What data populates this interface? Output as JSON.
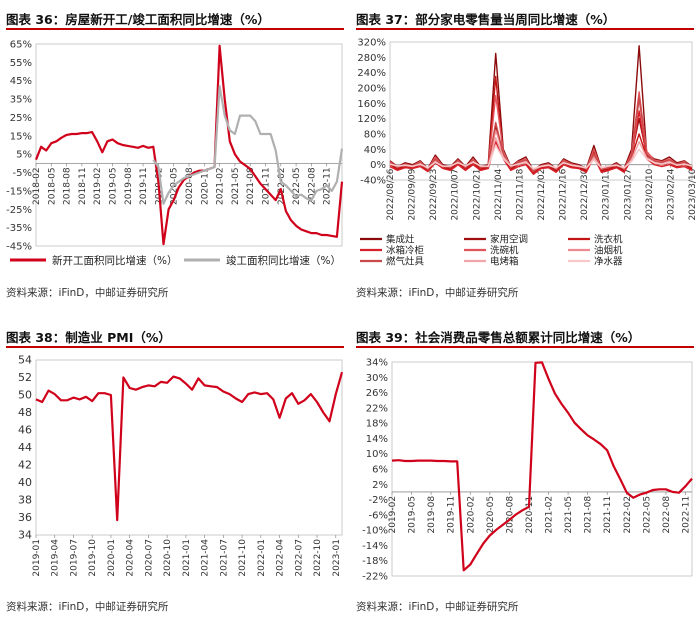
{
  "panels": [
    {
      "title": "图表 36：房屋新开工/竣工面积同比增速（%）",
      "source": "资料来源：iFinD，中邮证券研究所"
    },
    {
      "title": "图表 37：部分家电零售量当周同比增速（%）",
      "source": "资料来源：iFinD，中邮证券研究所"
    },
    {
      "title": "图表 38：制造业 PMI（%）",
      "source": "资料来源：iFinD，中邮证券研究所"
    },
    {
      "title": "图表 39：社会消费品零售总额累计同比增速（%）",
      "source": "资料来源：iFinD，中邮证券研究所"
    }
  ],
  "chart_data": [
    {
      "type": "line",
      "title": "图表 36：房屋新开工/竣工面积同比增速（%）",
      "yticks": [
        "65%",
        "55%",
        "45%",
        "35%",
        "25%",
        "15%",
        "5%",
        "-5%",
        "-15%",
        "-25%",
        "-35%",
        "-45%"
      ],
      "ylim": [
        -45,
        65
      ],
      "xticks": [
        "2018-02",
        "2018-05",
        "2018-08",
        "2018-11",
        "2019-02",
        "2019-05",
        "2019-08",
        "2019-11",
        "2020-02",
        "2020-05",
        "2020-08",
        "2020-11",
        "2021-02",
        "2021-05",
        "2021-08",
        "2021-11",
        "2022-02",
        "2022-05",
        "2022-08",
        "2022-11"
      ],
      "x_start": "2018-02",
      "series": [
        {
          "name": "新开工面积同比增速（%）",
          "color": "#d0021b",
          "values": [
            2,
            9,
            7,
            11,
            12,
            14,
            15.5,
            16,
            16,
            16.5,
            16.5,
            17,
            12,
            6,
            12,
            13,
            11,
            10,
            9.5,
            9,
            8.5,
            9.5,
            8.5,
            9,
            -10,
            -44,
            -25,
            -20,
            -13,
            -9,
            -7,
            -5,
            -4,
            -4,
            -3,
            -2,
            64,
            35,
            12,
            5,
            1,
            -1,
            -3,
            -7,
            -11,
            -14,
            -17,
            -20,
            -14,
            -26,
            -31,
            -34,
            -36,
            -37,
            -38,
            -38,
            -39,
            -39,
            -39.5,
            -40,
            -10
          ]
        },
        {
          "name": "竣工面积同比增速（%）",
          "color": "#b0b0b0",
          "values": [
            null,
            null,
            null,
            null,
            null,
            null,
            null,
            null,
            null,
            null,
            null,
            null,
            null,
            null,
            null,
            null,
            null,
            null,
            null,
            null,
            null,
            null,
            null,
            2,
            -2,
            -22,
            -16,
            -12,
            -10,
            -8,
            -7,
            -6,
            -5,
            -4,
            -3,
            -2,
            42,
            26,
            18,
            16,
            26,
            26,
            26,
            23,
            16,
            16,
            16,
            7,
            -10,
            -12,
            -15,
            -18,
            -17,
            -19,
            -20,
            -15,
            -14,
            -12,
            -15,
            -10,
            8
          ]
        }
      ]
    },
    {
      "type": "line",
      "title": "图表 37：部分家电零售量当周同比增速（%）",
      "yticks": [
        "320%",
        "280%",
        "240%",
        "200%",
        "160%",
        "120%",
        "80%",
        "40%",
        "0%",
        "-40%"
      ],
      "ylim": [
        -40,
        320
      ],
      "xticks": [
        "2022/08/26",
        "2022/09/09",
        "2022/09/23",
        "2022/10/07",
        "2022/10/21",
        "2022/11/04",
        "2022/11/18",
        "2022/12/02",
        "2022/12/16",
        "2022/12/30",
        "2023/01/13",
        "2023/01/27",
        "2023/02/10",
        "2023/02/24",
        "2023/03/10"
      ],
      "series": [
        {
          "name": "集成灶",
          "color": "#8b0a0a",
          "values": [
            10,
            -5,
            5,
            0,
            10,
            -10,
            25,
            0,
            -5,
            15,
            -5,
            20,
            -5,
            0,
            290,
            40,
            -5,
            10,
            20,
            -15,
            0,
            5,
            -10,
            15,
            5,
            0,
            -10,
            50,
            -10,
            -5,
            5,
            -10,
            40,
            310,
            30,
            15,
            10,
            20,
            5,
            10,
            -5
          ]
        },
        {
          "name": "家用空调",
          "color": "#a00e0e",
          "values": [
            5,
            -10,
            0,
            -5,
            5,
            -15,
            15,
            -5,
            -10,
            10,
            -10,
            10,
            -10,
            -5,
            100,
            25,
            -10,
            5,
            10,
            -20,
            -5,
            0,
            -15,
            10,
            0,
            -5,
            -15,
            35,
            -15,
            -10,
            0,
            -15,
            25,
            120,
            25,
            10,
            5,
            10,
            0,
            5,
            -10
          ]
        },
        {
          "name": "洗衣机",
          "color": "#c41414",
          "values": [
            0,
            -12,
            -5,
            -8,
            0,
            -15,
            10,
            -8,
            -12,
            5,
            -12,
            5,
            -12,
            -8,
            230,
            20,
            -12,
            0,
            5,
            -22,
            -8,
            -5,
            -18,
            5,
            -5,
            -8,
            -18,
            30,
            -18,
            -12,
            -5,
            -18,
            20,
            80,
            20,
            5,
            0,
            5,
            -5,
            0,
            -12
          ]
        },
        {
          "name": "冰箱冷柜",
          "color": "#d9202a",
          "values": [
            -5,
            -15,
            -8,
            -10,
            -5,
            -18,
            5,
            -10,
            -15,
            0,
            -15,
            0,
            -15,
            -10,
            60,
            15,
            -15,
            -5,
            0,
            -25,
            -10,
            -8,
            -20,
            0,
            -8,
            -10,
            -20,
            20,
            -20,
            -15,
            -8,
            -20,
            15,
            140,
            15,
            0,
            -5,
            0,
            -8,
            -5,
            -15
          ]
        },
        {
          "name": "洗碗机",
          "color": "#e2545c",
          "values": [
            8,
            -8,
            2,
            -3,
            8,
            -12,
            20,
            -3,
            -8,
            12,
            -8,
            15,
            -8,
            -3,
            180,
            35,
            -8,
            8,
            15,
            -18,
            -3,
            2,
            -12,
            12,
            2,
            -3,
            -12,
            40,
            -12,
            -8,
            2,
            -12,
            30,
            190,
            35,
            12,
            8,
            15,
            2,
            8,
            -8
          ]
        },
        {
          "name": "油烟机",
          "color": "#ee8a8f",
          "values": [
            3,
            -6,
            0,
            -4,
            3,
            -10,
            12,
            -4,
            -6,
            8,
            -6,
            10,
            -6,
            -4,
            90,
            30,
            -6,
            4,
            10,
            -16,
            -4,
            0,
            -10,
            8,
            0,
            -4,
            -10,
            25,
            -10,
            -6,
            0,
            -10,
            18,
            170,
            30,
            8,
            4,
            10,
            0,
            4,
            -6
          ]
        },
        {
          "name": "燃气灶具",
          "color": "#c94a4a",
          "values": [
            6,
            -7,
            1,
            -3,
            6,
            -11,
            14,
            -3,
            -7,
            9,
            -7,
            12,
            -7,
            -3,
            110,
            28,
            -7,
            6,
            12,
            -17,
            -3,
            1,
            -11,
            9,
            1,
            -3,
            -11,
            28,
            -11,
            -7,
            1,
            -11,
            22,
            175,
            28,
            9,
            6,
            12,
            1,
            6,
            -7
          ]
        },
        {
          "name": "电烤箱",
          "color": "#f2a5a8",
          "values": [
            2,
            -4,
            -2,
            -5,
            2,
            -9,
            8,
            -5,
            -4,
            6,
            -4,
            8,
            -4,
            -5,
            70,
            20,
            -4,
            2,
            8,
            -12,
            -5,
            -2,
            -9,
            6,
            -2,
            -5,
            -9,
            18,
            -9,
            -4,
            -2,
            -9,
            12,
            60,
            18,
            6,
            2,
            8,
            -2,
            2,
            -4
          ]
        },
        {
          "name": "净水器",
          "color": "#f7c8ca",
          "values": [
            1,
            -3,
            -1,
            -4,
            1,
            -8,
            6,
            -4,
            -3,
            5,
            -3,
            6,
            -3,
            -4,
            50,
            15,
            -3,
            1,
            6,
            -10,
            -4,
            -1,
            -8,
            5,
            -1,
            -4,
            -8,
            12,
            -8,
            -3,
            -1,
            -8,
            8,
            40,
            15,
            5,
            1,
            6,
            -1,
            1,
            -3
          ]
        }
      ]
    },
    {
      "type": "line",
      "title": "图表 38：制造业 PMI（%）",
      "yticks": [
        "54",
        "52",
        "50",
        "48",
        "46",
        "44",
        "42",
        "40",
        "38",
        "36",
        "34"
      ],
      "ylim": [
        34,
        54
      ],
      "xticks": [
        "2019-01",
        "2019-04",
        "2019-07",
        "2019-10",
        "2020-01",
        "2020-04",
        "2020-07",
        "2020-10",
        "2021-01",
        "2021-04",
        "2021-07",
        "2021-10",
        "2022-01",
        "2022-04",
        "2022-07",
        "2022-10",
        "2023-01"
      ],
      "x_start": "2019-01",
      "series": [
        {
          "name": "制造业PMI",
          "color": "#d0021b",
          "values": [
            49.5,
            49.2,
            50.5,
            50.1,
            49.4,
            49.4,
            49.7,
            49.5,
            49.8,
            49.3,
            50.2,
            50.2,
            50.0,
            35.7,
            52.0,
            50.8,
            50.6,
            50.9,
            51.1,
            51.0,
            51.5,
            51.4,
            52.1,
            51.9,
            51.3,
            50.6,
            51.9,
            51.1,
            51.0,
            50.9,
            50.4,
            50.1,
            49.6,
            49.2,
            50.1,
            50.3,
            50.1,
            50.2,
            49.5,
            47.4,
            49.6,
            50.2,
            49.0,
            49.4,
            50.1,
            49.2,
            48.0,
            47.0,
            50.1,
            52.6
          ]
        }
      ]
    },
    {
      "type": "line",
      "title": "图表 39：社会消费品零售总额累计同比增速（%）",
      "yticks": [
        "34%",
        "30%",
        "26%",
        "22%",
        "18%",
        "14%",
        "10%",
        "6%",
        "2%",
        "-2%",
        "-6%",
        "-10%",
        "-14%",
        "-18%",
        "-22%"
      ],
      "ylim": [
        -22,
        34
      ],
      "xticks": [
        "2019-02",
        "2019-05",
        "2019-08",
        "2019-11",
        "2020-02",
        "2020-05",
        "2020-08",
        "2020-11",
        "2021-02",
        "2021-05",
        "2021-08",
        "2021-11",
        "2022-02",
        "2022-05",
        "2022-08",
        "2022-11",
        "2023-02"
      ],
      "x_start": "2019-02",
      "series": [
        {
          "name": "社会消费品零售总额累计同比",
          "color": "#d0021b",
          "values": [
            8.2,
            8.3,
            8.1,
            8.1,
            8.2,
            8.2,
            8.2,
            8.1,
            8.1,
            8.0,
            8.0,
            -20.5,
            -19.0,
            -16.2,
            -13.5,
            -11.4,
            -9.9,
            -8.6,
            -7.3,
            -5.9,
            -4.8,
            -3.9,
            33.8,
            33.9,
            29.6,
            25.7,
            23.0,
            20.7,
            18.1,
            16.4,
            14.8,
            13.7,
            12.5,
            10.9,
            6.7,
            3.3,
            -0.2,
            -1.5,
            -0.7,
            -0.2,
            0.5,
            0.7,
            0.7,
            0.0,
            -0.2,
            1.5,
            3.5
          ]
        }
      ]
    }
  ]
}
